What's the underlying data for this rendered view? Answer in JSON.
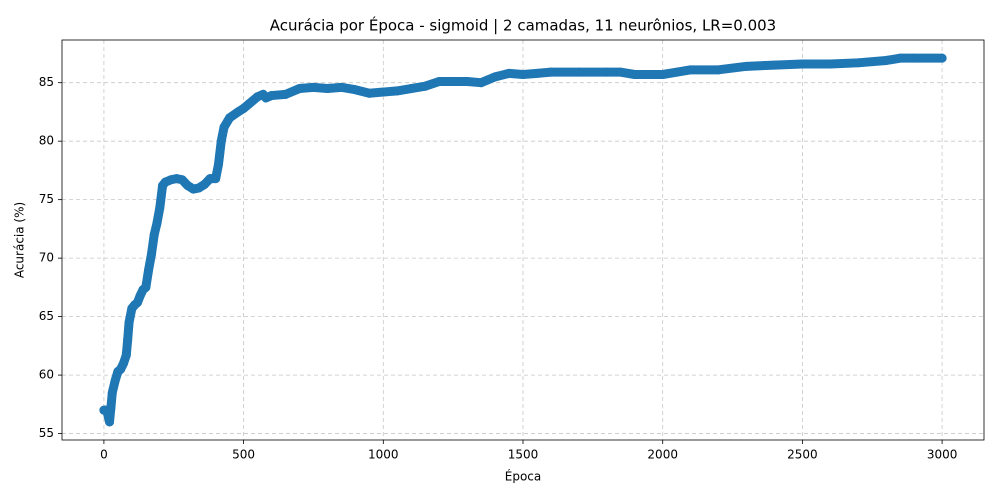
{
  "chart_data": {
    "type": "line",
    "title": "Acurácia por Época - sigmoid | 2 camadas, 11 neurônios, LR=0.003",
    "x_label": "Época",
    "y_label": "Acurácia (%)",
    "color": "#1f77b4",
    "grid": true,
    "x": [
      0,
      10,
      20,
      25,
      30,
      40,
      50,
      60,
      70,
      80,
      85,
      90,
      100,
      110,
      120,
      130,
      140,
      150,
      160,
      170,
      180,
      190,
      200,
      210,
      220,
      240,
      260,
      280,
      300,
      320,
      340,
      360,
      380,
      400,
      410,
      420,
      430,
      450,
      480,
      500,
      520,
      550,
      570,
      580,
      600,
      650,
      700,
      750,
      800,
      850,
      900,
      950,
      1000,
      1050,
      1100,
      1150,
      1200,
      1250,
      1300,
      1350,
      1400,
      1450,
      1500,
      1550,
      1600,
      1700,
      1800,
      1850,
      1900,
      2000,
      2050,
      2100,
      2200,
      2300,
      2400,
      2500,
      2600,
      2700,
      2800,
      2850,
      2900,
      3000
    ],
    "values": [
      57,
      57,
      56,
      57.2,
      58.5,
      59.5,
      60.3,
      60.5,
      61,
      61.7,
      63,
      64.5,
      65.7,
      66,
      66.2,
      66.8,
      67.3,
      67.5,
      69,
      70.3,
      72,
      73,
      74.3,
      76.2,
      76.5,
      76.7,
      76.8,
      76.7,
      76.2,
      75.9,
      76,
      76.3,
      76.8,
      76.8,
      78,
      80,
      81.2,
      82,
      82.5,
      82.8,
      83.2,
      83.8,
      84,
      83.7,
      83.9,
      84,
      84.5,
      84.6,
      84.5,
      84.6,
      84.4,
      84.1,
      84.2,
      84.3,
      84.5,
      84.7,
      85.1,
      85.1,
      85.1,
      85,
      85.5,
      85.8,
      85.7,
      85.8,
      85.9,
      85.9,
      85.9,
      85.9,
      85.7,
      85.7,
      85.9,
      86.1,
      86.1,
      86.4,
      86.5,
      86.6,
      86.6,
      86.7,
      86.9,
      87.1,
      87.1,
      87.1
    ],
    "xlim": [
      -150,
      3150
    ],
    "ylim": [
      54.45,
      88.65
    ],
    "xticks": [
      0,
      500,
      1000,
      1500,
      2000,
      2500,
      3000
    ],
    "yticks": [
      55,
      60,
      65,
      70,
      75,
      80,
      85
    ]
  }
}
